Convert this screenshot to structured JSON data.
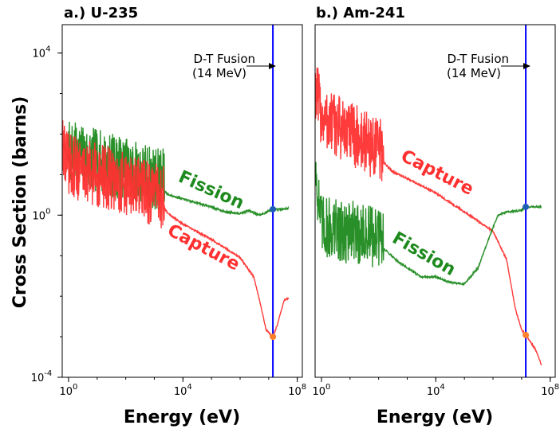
{
  "figure": {
    "ylabel": "Cross Section (barns)",
    "colors": {
      "fission": "#1e8a1e",
      "capture": "#ff3030",
      "fusion_line": "#0000ff",
      "marker_fission": "#1f5fb4",
      "marker_capture": "#ff7f2a"
    }
  },
  "chart_data": [
    {
      "type": "line",
      "title": "a.) U-235",
      "xlabel": "Energy (eV)",
      "ylabel": "Cross Section (barns)",
      "x_scale": "log",
      "y_scale": "log",
      "xlim": [
        0.6,
        150000000.0
      ],
      "ylim": [
        0.0001,
        50000
      ],
      "xticks": [
        {
          "value": 1,
          "label": "10^0"
        },
        {
          "value": 10000,
          "label": "10^4"
        },
        {
          "value": 100000000,
          "label": "10^8"
        }
      ],
      "yticks": [
        {
          "value": 0.0001,
          "label": "10^-4"
        },
        {
          "value": 1,
          "label": "10^0"
        },
        {
          "value": 10000,
          "label": "10^4"
        }
      ],
      "annotation": {
        "line1": "D-T Fusion",
        "line2": "(14 MeV)",
        "energy_eV": 14000000
      },
      "series": [
        {
          "name": "Fission",
          "resonance_range_eV": [
            1,
            2250
          ],
          "points": [
            [
              0.6,
              60
            ],
            [
              0.8,
              40
            ],
            [
              1,
              20
            ],
            [
              2250,
              4
            ],
            [
              3000,
              3.2
            ],
            [
              10000,
              2.5
            ],
            [
              100000,
              1.6
            ],
            [
              300000,
              1.2
            ],
            [
              1000000,
              1.1
            ],
            [
              2000000,
              1.3
            ],
            [
              5000000,
              1.0
            ],
            [
              14000000,
              1.4
            ],
            [
              30000000,
              1.4
            ],
            [
              50000000,
              1.5
            ]
          ],
          "marker": {
            "x": 14000000,
            "y": 1.4
          }
        },
        {
          "name": "Capture",
          "resonance_range_eV": [
            0.6,
            2250
          ],
          "points": [
            [
              0.6,
              40
            ],
            [
              0.8,
              20
            ],
            [
              1,
              10
            ],
            [
              2250,
              1.5
            ],
            [
              3000,
              1.1
            ],
            [
              10000,
              0.6
            ],
            [
              100000,
              0.25
            ],
            [
              1000000,
              0.09
            ],
            [
              3000000,
              0.03
            ],
            [
              6000000,
              0.004
            ],
            [
              8000000,
              0.0015
            ],
            [
              14000000,
              0.001
            ],
            [
              20000000,
              0.002
            ],
            [
              35000000,
              0.008
            ],
            [
              50000000,
              0.009
            ]
          ],
          "marker": {
            "x": 14000000,
            "y": 0.001
          }
        }
      ]
    },
    {
      "type": "line",
      "title": "b.) Am-241",
      "xlabel": "Energy (eV)",
      "ylabel": "",
      "x_scale": "log",
      "y_scale": "log",
      "xlim": [
        0.6,
        150000000.0
      ],
      "ylim": [
        0.0001,
        50000
      ],
      "xticks": [
        {
          "value": 1,
          "label": "10^0"
        },
        {
          "value": 10000,
          "label": "10^4"
        },
        {
          "value": 100000000,
          "label": "10^8"
        }
      ],
      "yticks": [],
      "annotation": {
        "line1": "D-T Fusion",
        "line2": "(14 MeV)",
        "energy_eV": 14000000
      },
      "series": [
        {
          "name": "Capture",
          "resonance_range_eV": [
            0.6,
            150
          ],
          "points": [
            [
              0.6,
              900
            ],
            [
              1,
              150
            ],
            [
              150,
              20
            ],
            [
              300,
              12
            ],
            [
              1000,
              8
            ],
            [
              10000,
              3.5
            ],
            [
              100000,
              1.2
            ],
            [
              1000000,
              0.4
            ],
            [
              3000000,
              0.08
            ],
            [
              6000000,
              0.005
            ],
            [
              10000000,
              0.0015
            ],
            [
              14000000,
              0.0011
            ],
            [
              30000000,
              0.0005
            ],
            [
              50000000,
              0.0002
            ]
          ],
          "marker": {
            "x": 14000000,
            "y": 0.0011
          }
        },
        {
          "name": "Fission",
          "resonance_range_eV": [
            0.6,
            150
          ],
          "points": [
            [
              0.6,
              10
            ],
            [
              1,
              0.3
            ],
            [
              150,
              0.15
            ],
            [
              500,
              0.07
            ],
            [
              3000,
              0.03
            ],
            [
              10000,
              0.03
            ],
            [
              30000,
              0.022
            ],
            [
              100000,
              0.02
            ],
            [
              300000,
              0.05
            ],
            [
              1000000,
              0.5
            ],
            [
              1500000,
              1.0
            ],
            [
              3000000,
              1.2
            ],
            [
              10000000,
              1.3
            ],
            [
              14000000,
              1.6
            ],
            [
              50000000,
              1.6
            ]
          ],
          "marker": {
            "x": 14000000,
            "y": 1.6
          }
        }
      ]
    }
  ]
}
